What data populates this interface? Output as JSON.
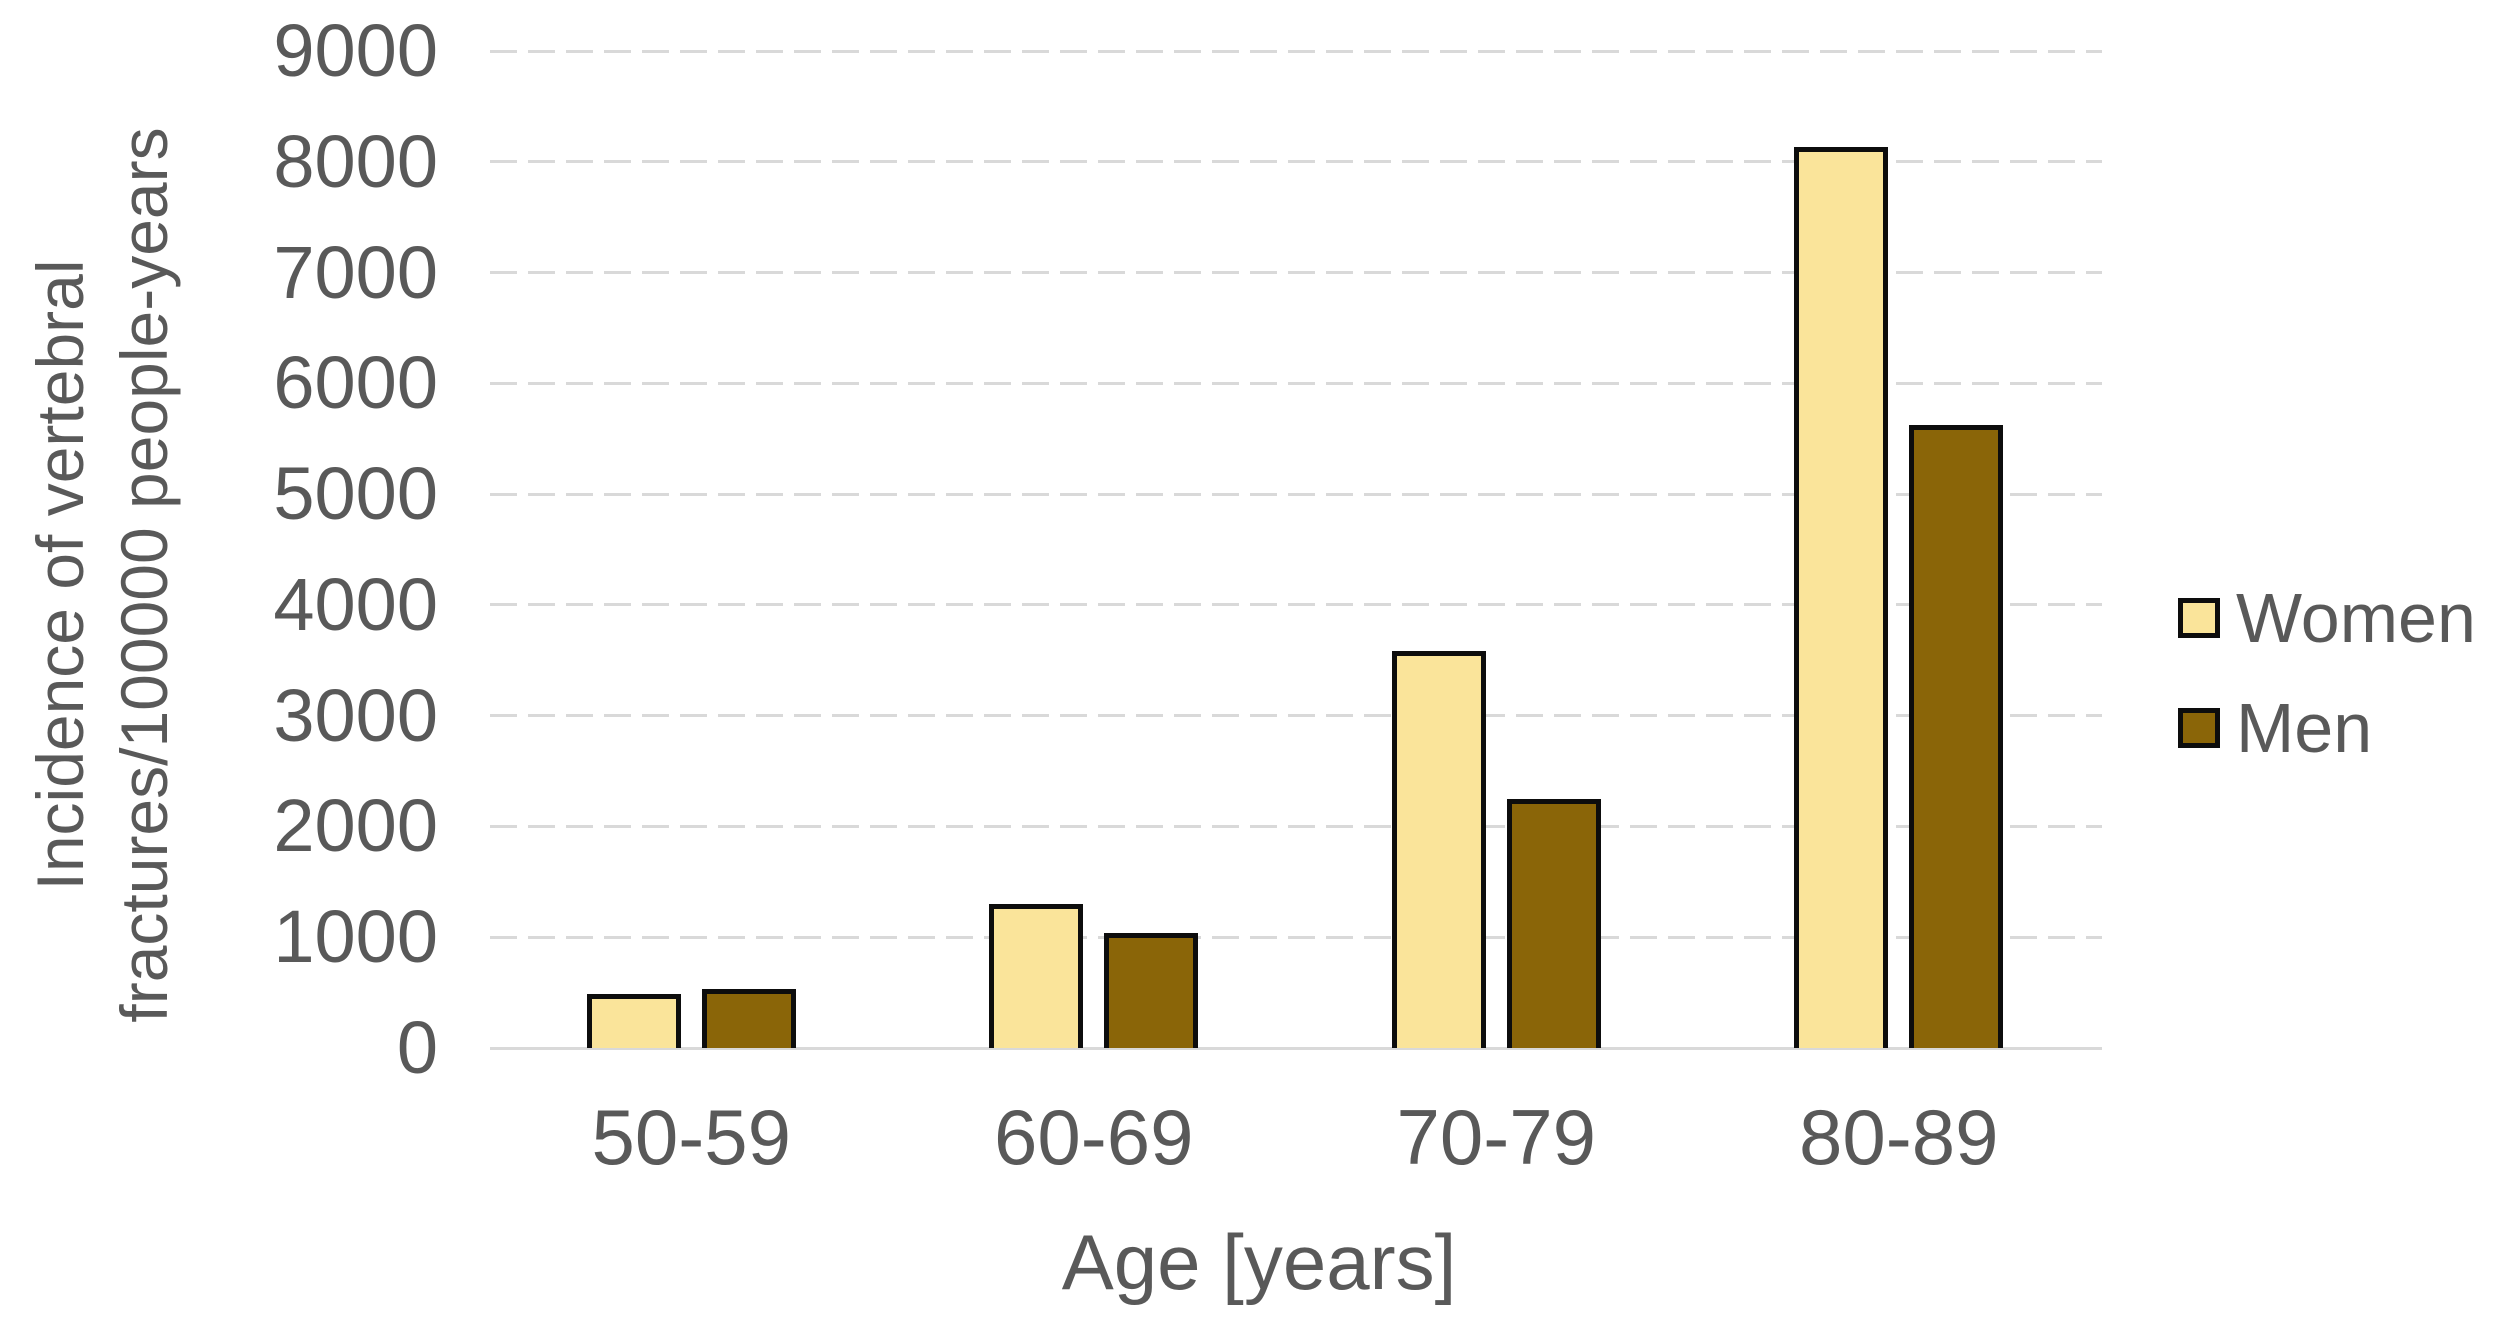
{
  "chart_data": {
    "type": "bar",
    "title": "",
    "xlabel": "Age [years]",
    "ylabel": "Incidence of vertebral fractures/100000 people-years",
    "ylabel_lines": [
      "Incidence of vertebral",
      "fractures/100000 people-years"
    ],
    "categories": [
      "50-59",
      "60-69",
      "70-79",
      "80-89"
    ],
    "series": [
      {
        "name": "Women",
        "color": "#FAE49A",
        "values": [
          490,
          1300,
          3580,
          8130
        ]
      },
      {
        "name": "Men",
        "color": "#8A6508",
        "values": [
          530,
          1040,
          2250,
          5620
        ]
      }
    ],
    "ylim": [
      0,
      9000
    ],
    "yticks": [
      0,
      1000,
      2000,
      3000,
      4000,
      5000,
      6000,
      7000,
      8000,
      9000
    ],
    "grid": "horizontal-dashed",
    "legend_position": "right",
    "colors": {
      "text": "#595959",
      "gridline": "#D9D9D9",
      "axis_line": "#D9D9D9",
      "bar_border": "#0D0D0D",
      "background": "#FFFFFF"
    }
  }
}
